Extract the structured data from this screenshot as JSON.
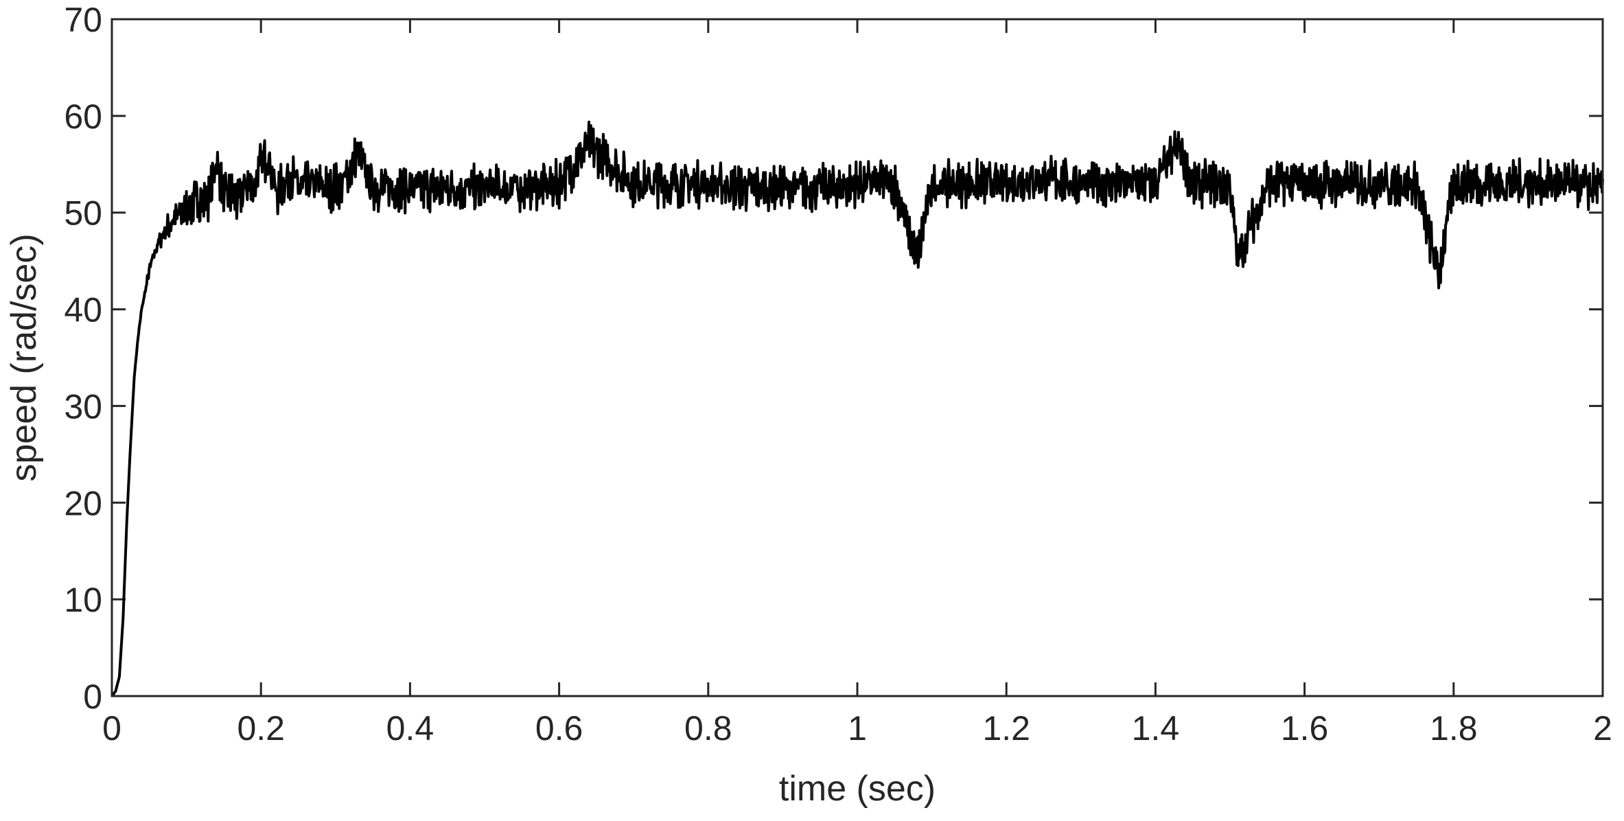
{
  "chart_data": {
    "type": "line",
    "title": "",
    "xlabel": "time (sec)",
    "ylabel": "speed (rad/sec)",
    "xlim": [
      0,
      2
    ],
    "ylim": [
      0,
      70
    ],
    "x_ticks": [
      0,
      0.2,
      0.4,
      0.6,
      0.8,
      1,
      1.2,
      1.4,
      1.6,
      1.8,
      2
    ],
    "x_tick_labels": [
      "0",
      "0.2",
      "0.4",
      "0.6",
      "0.8",
      "1",
      "1.2",
      "1.4",
      "1.6",
      "1.8",
      "2"
    ],
    "y_ticks": [
      0,
      10,
      20,
      30,
      40,
      50,
      60,
      70
    ],
    "y_tick_labels": [
      "0",
      "10",
      "20",
      "30",
      "40",
      "50",
      "60",
      "70"
    ],
    "grid": false,
    "legend": "none",
    "line_color": "#000000",
    "series": [
      {
        "x": [
          0,
          0.005,
          0.01,
          0.015,
          0.02,
          0.025,
          0.03,
          0.035,
          0.04,
          0.045,
          0.05,
          0.06,
          0.07,
          0.08,
          0.09,
          0.1,
          0.11,
          0.12,
          0.13,
          0.14,
          0.15,
          0.16,
          0.17,
          0.18,
          0.19,
          0.2,
          0.21,
          0.22,
          0.23,
          0.24,
          0.25,
          0.27,
          0.29,
          0.31,
          0.33,
          0.35,
          0.4,
          0.45,
          0.5,
          0.55,
          0.6,
          0.64,
          0.7,
          0.75,
          0.8,
          0.85,
          0.9,
          0.95,
          1.0,
          1.05,
          1.08,
          1.1,
          1.15,
          1.2,
          1.25,
          1.3,
          1.35,
          1.4,
          1.43,
          1.45,
          1.5,
          1.51,
          1.55,
          1.6,
          1.65,
          1.7,
          1.75,
          1.78,
          1.8,
          1.85,
          1.9,
          1.95,
          2.0
        ],
        "values": [
          0,
          0.5,
          2,
          8,
          18,
          26,
          33,
          37,
          40,
          42,
          44,
          46.5,
          48,
          49,
          49.8,
          50.5,
          51,
          51.3,
          51.5,
          55.5,
          51.5,
          52,
          51,
          53,
          52.5,
          55,
          56,
          52,
          53,
          54,
          52.5,
          53,
          52.5,
          53,
          56,
          52.5,
          52.5,
          52.5,
          52.5,
          52.5,
          53,
          57,
          53,
          53,
          53,
          52.5,
          52.5,
          52.5,
          53,
          53,
          45,
          53,
          53,
          53,
          53.5,
          53,
          53,
          53,
          57,
          53,
          53,
          45,
          53,
          53,
          53,
          53,
          53,
          43.5,
          53,
          53,
          53,
          53,
          52.5
        ]
      }
    ]
  }
}
